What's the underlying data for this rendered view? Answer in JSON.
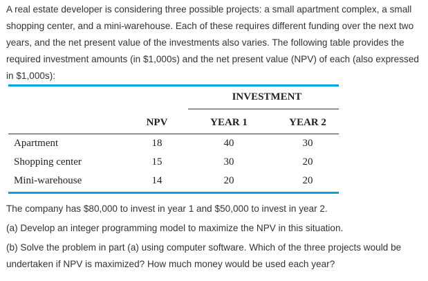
{
  "intro": "A real estate developer is considering three possible projects: a small apartment complex, a small shopping center, and a mini-warehouse. Each of these requires different funding over the next two years, and the net present value of the investments also varies. The following table provides the required investment amounts (in $1,000s) and the net present value (NPV) of each (also expressed in $1,000s):",
  "table": {
    "group_header": "INVESTMENT",
    "headers": [
      "NPV",
      "YEAR 1",
      "YEAR 2"
    ],
    "rows": [
      {
        "name": "Apartment",
        "npv": "18",
        "y1": "40",
        "y2": "30"
      },
      {
        "name": "Shopping center",
        "npv": "15",
        "y1": "30",
        "y2": "20"
      },
      {
        "name": "Mini-warehouse",
        "npv": "14",
        "y1": "20",
        "y2": "20"
      }
    ],
    "accent_color": "#00a2e0"
  },
  "after": "The company has $80,000 to invest in year 1 and $50,000 to invest in year 2.",
  "part_a": "(a) Develop an integer programming model to maximize the NPV in this situation.",
  "part_b": "(b) Solve the problem in part (a) using computer software. Which of the three projects would be undertaken if NPV is maximized? How much money would be used each year?"
}
